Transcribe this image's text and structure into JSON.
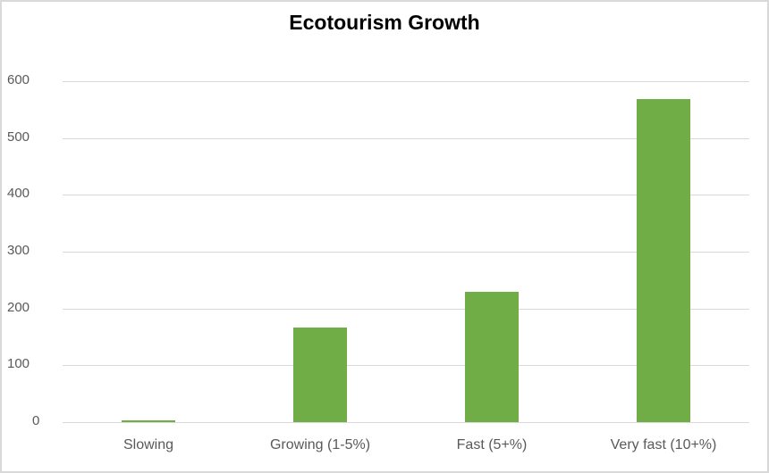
{
  "chart_data": {
    "type": "bar",
    "title": "Ecotourism Growth",
    "categories": [
      "Slowing",
      "Growing (1-5%)",
      "Fast (5+%)",
      "Very fast (10+%)"
    ],
    "values": [
      3,
      167,
      230,
      568
    ],
    "xlabel": "",
    "ylabel": "",
    "ylim": [
      0,
      600
    ],
    "yticks": [
      0,
      100,
      200,
      300,
      400,
      500,
      600
    ],
    "grid": true,
    "legend": "none",
    "bar_color": "#70ad47"
  },
  "labels": {
    "title": "Ecotourism Growth",
    "yticks": [
      "600",
      "500",
      "400",
      "300",
      "200",
      "100",
      "0"
    ],
    "categories": [
      "Slowing",
      "Growing (1-5%)",
      "Fast (5+%)",
      "Very fast (10+%)"
    ]
  }
}
